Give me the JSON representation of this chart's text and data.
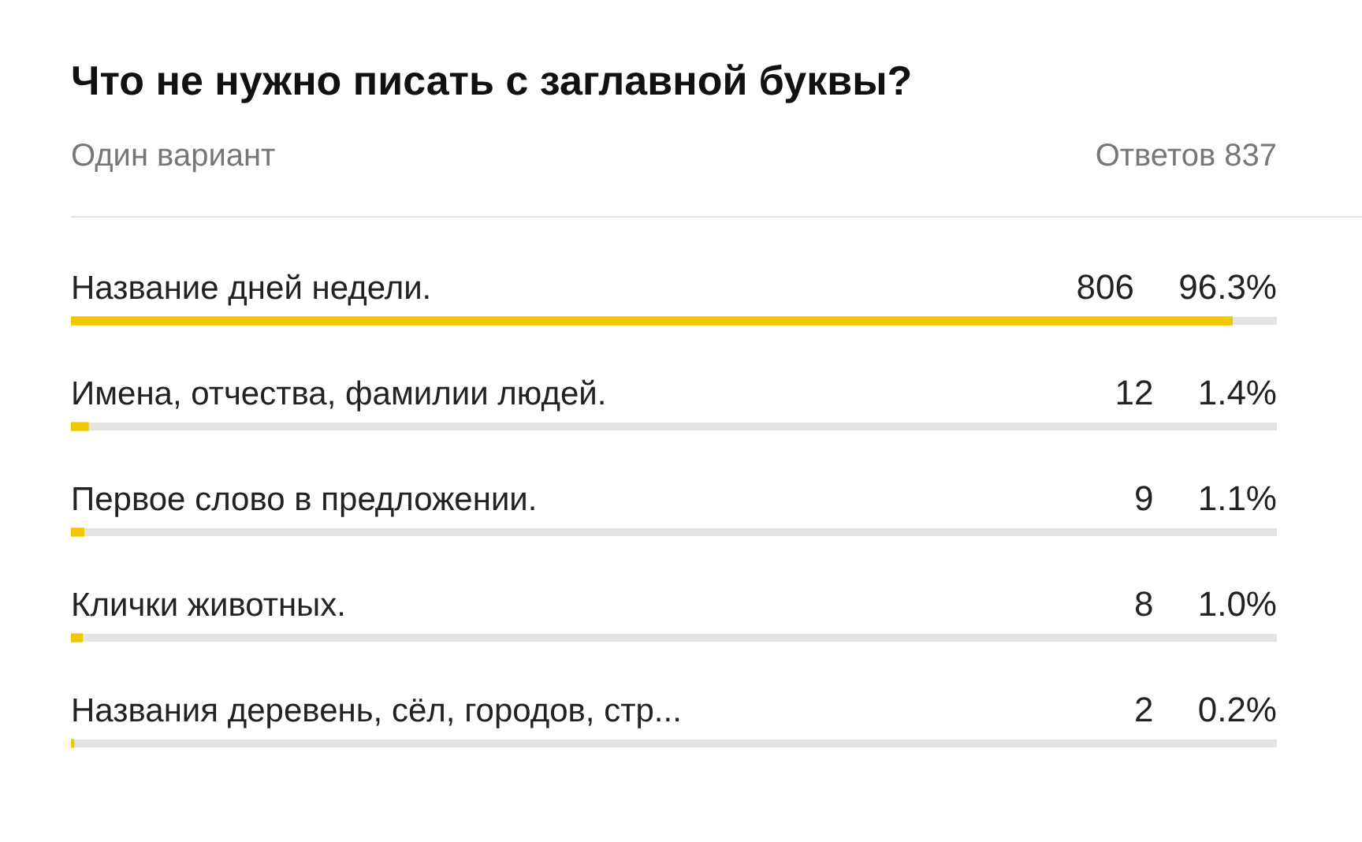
{
  "chart_data": {
    "type": "bar",
    "orientation": "horizontal",
    "title": "Что не нужно писать с заглавной буквы?",
    "subtitle": "Один вариант",
    "annotations": [
      "Ответов 837"
    ],
    "categories": [
      "Название дней недели.",
      "Имена, отчества, фамилии людей.",
      "Первое слово в предложении.",
      "Клички животных.",
      "Названия деревень, сёл, городов, стр..."
    ],
    "values": [
      806,
      12,
      9,
      8,
      2
    ],
    "value_labels": [
      "806 96.3%",
      "12 1.4%",
      "9 1.1%",
      "8 1.0%",
      "2 0.2%"
    ],
    "color": "#f0c800",
    "xlim": [
      0,
      837
    ],
    "tick_labels": false,
    "legend": false
  }
}
